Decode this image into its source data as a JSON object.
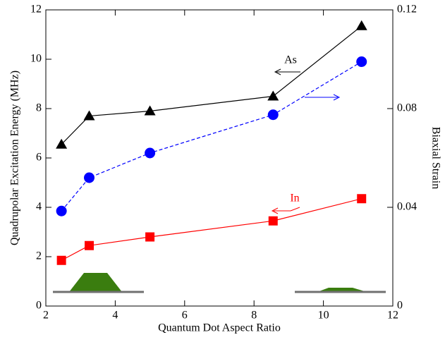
{
  "chart_data": {
    "type": "line",
    "xlabel": "Quantum Dot Aspect Ratio",
    "ylabel": "Quadrupolar Excitation Energy (MHz)",
    "y2label": "Biaxial Strain",
    "x": [
      2.45,
      3.25,
      5.0,
      8.55,
      11.1
    ],
    "series": [
      {
        "color": "#000000",
        "marker": "triangle",
        "dash": false,
        "values": [
          6.55,
          7.7,
          7.9,
          8.5,
          11.35
        ]
      },
      {
        "color": "#0000ff",
        "marker": "circle",
        "dash": true,
        "axis": "y2",
        "values": [
          0.0385,
          0.052,
          0.062,
          0.0775,
          0.099
        ]
      },
      {
        "color": "#ff0000",
        "marker": "square",
        "dash": false,
        "values": [
          1.85,
          2.45,
          2.8,
          3.45,
          4.35
        ]
      }
    ],
    "annotations": [
      "As",
      "In"
    ],
    "xlim": [
      2,
      12
    ],
    "xticks": [
      2,
      4,
      6,
      8,
      10,
      12
    ],
    "ylim": [
      0,
      12
    ],
    "yticks": [
      0,
      2,
      4,
      6,
      8,
      10,
      12
    ],
    "y2lim": [
      0,
      0.12
    ],
    "y2ticks": [
      0,
      0.04,
      0.08,
      0.12
    ]
  }
}
